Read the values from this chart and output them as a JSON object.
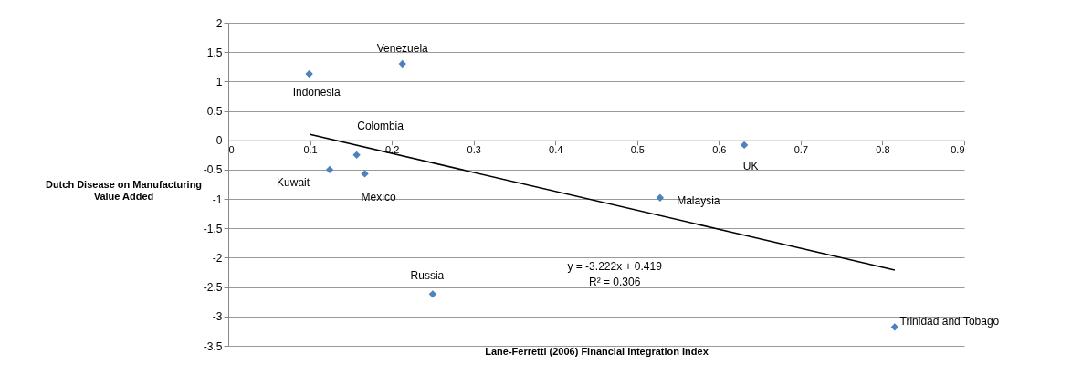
{
  "chart_data": {
    "type": "scatter",
    "xlabel": "Lane-Ferretti (2006) Financial Integration Index",
    "ylabel": "Dutch Disease on Manufacturing\nValue Added",
    "xlim": [
      0,
      0.9
    ],
    "xticks": [
      0,
      0.1,
      0.2,
      0.3,
      0.4,
      0.5,
      0.6,
      0.7,
      0.8,
      0.9
    ],
    "ylim": [
      -3.5,
      2
    ],
    "yticks": [
      -3.5,
      -3,
      -2.5,
      -2,
      -1.5,
      -1,
      -0.5,
      0,
      0.5,
      1,
      1.5,
      2
    ],
    "grid": "y",
    "series": [
      {
        "marker": "diamond",
        "color": "#4f81bd",
        "x": [
          0.099,
          0.213,
          0.157,
          0.124,
          0.167,
          0.528,
          0.631,
          0.25,
          0.815
        ],
        "values": [
          1.13,
          1.3,
          -0.25,
          -0.5,
          -0.57,
          -0.98,
          -0.08,
          -2.62,
          -3.18
        ]
      },
      {
        "type": "line",
        "marker": "none",
        "color": "#000000",
        "x": [
          0.1,
          0.815
        ],
        "values": [
          0.1,
          -2.21
        ]
      }
    ],
    "annotations": [
      {
        "text": "Indonesia",
        "x": 0.099,
        "y": 1.13
      },
      {
        "text": "Venezuela",
        "x": 0.213,
        "y": 1.3
      },
      {
        "text": "Colombia",
        "x": 0.157,
        "y": -0.25
      },
      {
        "text": "Kuwait",
        "x": 0.124,
        "y": -0.5
      },
      {
        "text": "Mexico",
        "x": 0.167,
        "y": -0.57
      },
      {
        "text": "Malaysia",
        "x": 0.528,
        "y": -0.98
      },
      {
        "text": "UK",
        "x": 0.631,
        "y": -0.08
      },
      {
        "text": "Russia",
        "x": 0.25,
        "y": -2.62
      },
      {
        "text": "Trinidad and Tobago",
        "x": 0.815,
        "y": -3.18
      },
      "y = -3.222x + 0.419",
      "R² = 0.306"
    ]
  }
}
